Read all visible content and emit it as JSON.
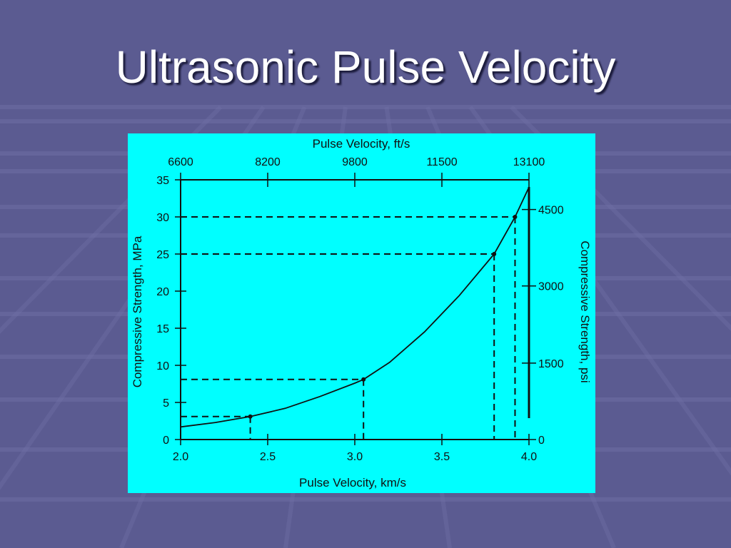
{
  "slide": {
    "title": "Ultrasonic Pulse Velocity"
  },
  "colors": {
    "background": "#5b5b91",
    "panel": "#00ffff",
    "ink": "#111111",
    "title": "#ffffff"
  },
  "chart_data": {
    "type": "line",
    "title": "",
    "xlabel": "Pulse Velocity, km/s",
    "ylabel": "Compressive Strength, MPa",
    "xlim": [
      2.0,
      4.0
    ],
    "ylim": [
      0,
      35
    ],
    "grid": false,
    "x_ticks": [
      2.0,
      2.5,
      3.0,
      3.5,
      4.0
    ],
    "x_tick_labels": [
      "2.0",
      "2.5",
      "3.0",
      "3.5",
      "4.0"
    ],
    "y_ticks": [
      0,
      5,
      10,
      15,
      20,
      25,
      30,
      35
    ],
    "y_tick_labels": [
      "0",
      "5",
      "10",
      "15",
      "20",
      "25",
      "30",
      "35"
    ],
    "top_axis": {
      "label": "Pulse Velocity, ft/s",
      "ticks": [
        {
          "x": 2.0,
          "label": "6600"
        },
        {
          "x": 2.5,
          "label": "8200"
        },
        {
          "x": 3.0,
          "label": "9800"
        },
        {
          "x": 3.5,
          "label": "11500"
        },
        {
          "x": 4.0,
          "label": "13100"
        }
      ]
    },
    "right_axis": {
      "label": "Compressive Strength, psi",
      "ticks": [
        {
          "y": 0,
          "label": "0"
        },
        {
          "y": 10.3,
          "label": "1500"
        },
        {
          "y": 20.7,
          "label": "3000"
        },
        {
          "y": 31,
          "label": "4500"
        }
      ]
    },
    "series": [
      {
        "x": [
          2.0,
          2.2,
          2.4,
          2.6,
          2.8,
          3.0,
          3.05,
          3.2,
          3.4,
          3.6,
          3.8,
          3.92,
          4.0
        ],
        "values": [
          1.7,
          2.3,
          3.1,
          4.2,
          5.8,
          7.6,
          8.1,
          10.4,
          14.5,
          19.4,
          25.0,
          30.0,
          34.0
        ]
      }
    ],
    "reference_points": [
      {
        "x": 2.4,
        "y": 3.1
      },
      {
        "x": 3.05,
        "y": 8.1
      },
      {
        "x": 3.8,
        "y": 25.0
      },
      {
        "x": 3.92,
        "y": 30.0
      }
    ]
  }
}
